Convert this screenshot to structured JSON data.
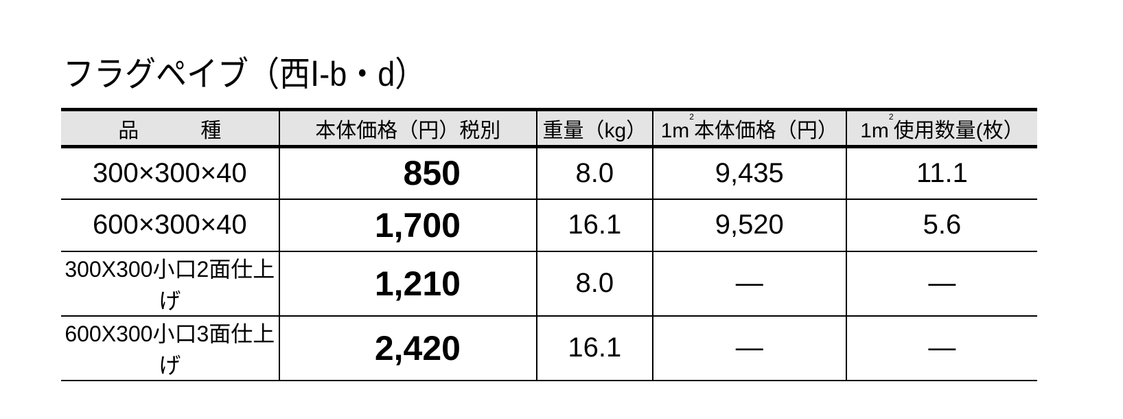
{
  "title": "フラグペイブ（西Ⅰ-b・d）",
  "table": {
    "headers": {
      "item_a": "品",
      "item_b": "種",
      "price": "本体価格（円）税別",
      "weight": "重量（kg）",
      "per_m2_price_pre": "1m",
      "per_m2_price_sup": "2",
      "per_m2_price": "本体価格（円）",
      "per_m2_qty_pre": "1m",
      "per_m2_qty_sup": "2",
      "per_m2_qty": "使用数量(枚）"
    },
    "rows": [
      {
        "item": "300×300×40",
        "price": "850",
        "weight": "8.0",
        "per_m2_price": "9,435",
        "per_m2_qty": "11.1"
      },
      {
        "item": "600×300×40",
        "price": "1,700",
        "weight": "16.1",
        "per_m2_price": "9,520",
        "per_m2_qty": "5.6"
      },
      {
        "item": "300X300小口2面仕上げ",
        "price": "1,210",
        "weight": "8.0",
        "per_m2_price": "—",
        "per_m2_qty": "—"
      },
      {
        "item": "600X300小口3面仕上げ",
        "price": "2,420",
        "weight": "16.1",
        "per_m2_price": "—",
        "per_m2_qty": "—"
      }
    ]
  },
  "colors": {
    "header_bg": "#e4e4e4",
    "text": "#000000"
  }
}
